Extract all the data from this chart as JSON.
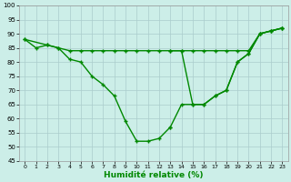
{
  "xlabel": "Humidité relative (%)",
  "background_color": "#cceee8",
  "grid_color": "#aacccc",
  "line_color": "#008800",
  "ylim": [
    45,
    100
  ],
  "xlim": [
    -0.5,
    23.5
  ],
  "yticks": [
    45,
    50,
    55,
    60,
    65,
    70,
    75,
    80,
    85,
    90,
    95,
    100
  ],
  "xticks": [
    0,
    1,
    2,
    3,
    4,
    5,
    6,
    7,
    8,
    9,
    10,
    11,
    12,
    13,
    14,
    15,
    16,
    17,
    18,
    19,
    20,
    21,
    22,
    23
  ],
  "lineA_x": [
    0,
    1,
    2,
    3,
    4,
    5,
    6,
    7,
    8,
    9,
    10,
    11,
    12,
    13
  ],
  "lineA_y": [
    88,
    85,
    86,
    85,
    81,
    80,
    75,
    72,
    68,
    59,
    52,
    52,
    53,
    57
  ],
  "lineB_x": [
    0,
    2,
    3,
    4,
    5,
    6,
    7,
    8,
    9,
    10,
    11,
    12,
    13,
    14,
    15,
    16,
    17,
    18,
    19,
    20,
    21,
    22,
    23
  ],
  "lineB_y": [
    88,
    86,
    85,
    84,
    84,
    84,
    84,
    84,
    84,
    84,
    84,
    84,
    84,
    84,
    84,
    84,
    84,
    84,
    84,
    84,
    90,
    91,
    92
  ],
  "lineC_x": [
    13,
    14,
    15,
    16,
    17,
    18,
    19,
    20,
    21,
    22,
    23
  ],
  "lineC_y": [
    57,
    65,
    65,
    65,
    68,
    70,
    80,
    83,
    90,
    91,
    92
  ],
  "lineD_x": [
    13,
    14,
    15,
    16,
    17,
    18,
    19,
    20,
    21,
    22,
    23
  ],
  "lineD_y": [
    84,
    84,
    65,
    65,
    68,
    70,
    80,
    83,
    90,
    91,
    92
  ],
  "xlabel_color": "#008800",
  "xlabel_fontsize": 6.5,
  "tick_fontsize": 5,
  "lw": 1.0,
  "ms": 2.5
}
